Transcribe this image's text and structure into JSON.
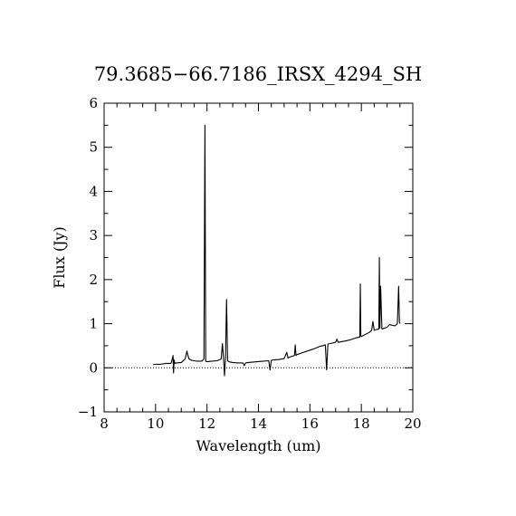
{
  "chart_data": {
    "type": "line",
    "title": "79.3685−66.7186_IRSX_4294_SH",
    "xlabel": "Wavelength (um)",
    "ylabel": "Flux (Jy)",
    "xlim": [
      8,
      20
    ],
    "ylim": [
      -1,
      6
    ],
    "xticks": [
      8,
      10,
      12,
      14,
      16,
      18,
      20
    ],
    "xtick_labels": [
      "8",
      "10",
      "12",
      "14",
      "16",
      "18",
      "20"
    ],
    "yticks": [
      -1,
      0,
      1,
      2,
      3,
      4,
      5,
      6
    ],
    "ytick_labels": [
      "−1",
      "0",
      "1",
      "2",
      "3",
      "4",
      "5",
      "6"
    ],
    "reference_line": {
      "y": 0,
      "style": "dotted"
    },
    "grid": false,
    "series": [
      {
        "x": [
          9.9,
          10.0,
          10.2,
          10.4,
          10.6,
          10.65,
          10.68,
          10.7,
          10.72,
          10.75,
          10.8,
          11.0,
          11.15,
          11.22,
          11.25,
          11.3,
          11.4,
          11.6,
          11.8,
          11.88,
          11.92,
          11.95,
          11.98,
          12.05,
          12.2,
          12.4,
          12.55,
          12.6,
          12.65,
          12.68,
          12.72,
          12.76,
          12.8,
          12.85,
          12.9,
          13.0,
          13.2,
          13.4,
          13.45,
          13.5,
          13.6,
          13.8,
          14.0,
          14.2,
          14.4,
          14.45,
          14.5,
          14.6,
          14.8,
          15.0,
          15.1,
          15.15,
          15.2,
          15.4,
          15.43,
          15.46,
          15.5,
          15.6,
          15.8,
          16.0,
          16.2,
          16.4,
          16.5,
          16.6,
          16.65,
          16.7,
          16.8,
          17.0,
          17.05,
          17.1,
          17.2,
          17.4,
          17.6,
          17.8,
          17.94,
          17.96,
          17.98,
          18.0,
          18.1,
          18.3,
          18.4,
          18.45,
          18.5,
          18.6,
          18.68,
          18.7,
          18.72,
          18.75,
          18.8,
          19.0,
          19.1,
          19.3,
          19.4,
          19.45,
          19.48,
          19.5
        ],
        "y": [
          0.07,
          0.08,
          0.08,
          0.1,
          0.1,
          0.2,
          0.28,
          -0.12,
          0.18,
          0.1,
          0.11,
          0.12,
          0.2,
          0.38,
          0.3,
          0.2,
          0.17,
          0.15,
          0.15,
          0.2,
          5.5,
          0.15,
          0.14,
          0.14,
          0.15,
          0.16,
          0.2,
          0.55,
          0.15,
          -0.18,
          0.25,
          1.55,
          0.16,
          0.14,
          0.13,
          0.12,
          0.11,
          0.11,
          0.05,
          0.11,
          0.12,
          0.13,
          0.14,
          0.15,
          0.16,
          -0.05,
          0.17,
          0.18,
          0.19,
          0.21,
          0.35,
          0.22,
          0.24,
          0.28,
          0.52,
          0.28,
          0.3,
          0.32,
          0.36,
          0.4,
          0.44,
          0.49,
          0.5,
          0.52,
          -0.05,
          0.54,
          0.55,
          0.58,
          0.65,
          0.58,
          0.59,
          0.61,
          0.64,
          0.68,
          0.7,
          1.9,
          0.72,
          0.71,
          0.74,
          0.8,
          0.85,
          1.05,
          0.85,
          0.87,
          0.88,
          2.5,
          0.9,
          1.85,
          0.88,
          0.92,
          0.98,
          0.95,
          1.0,
          1.85,
          1.05,
          1.0
        ]
      }
    ]
  }
}
